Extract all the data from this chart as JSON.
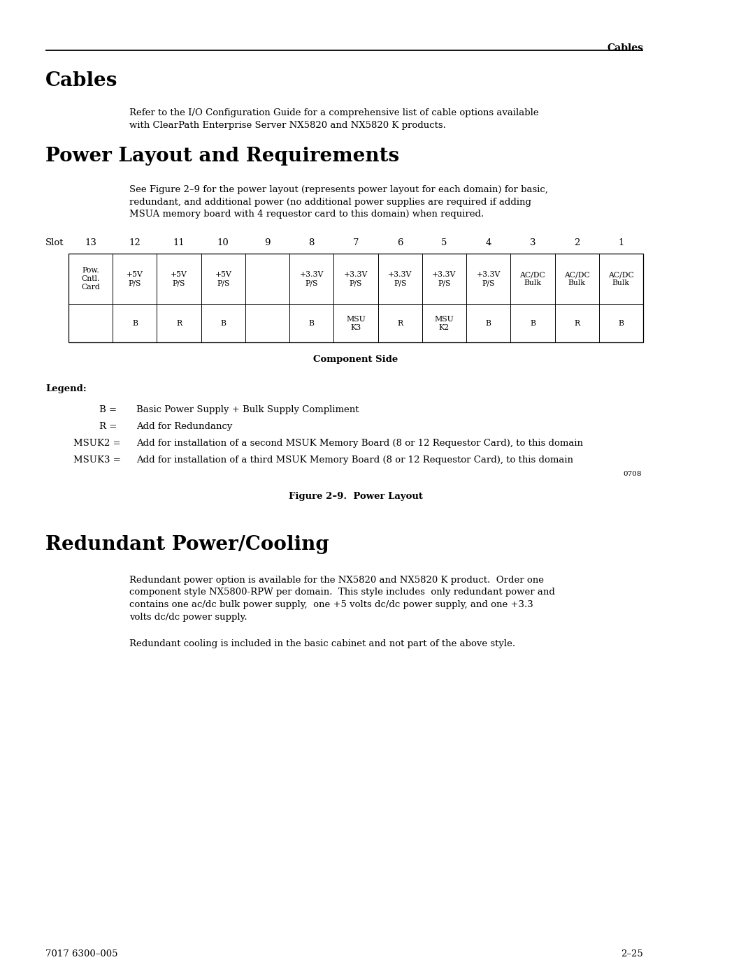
{
  "bg_color": "#ffffff",
  "header_text": "Cables",
  "section1_title": "Cables",
  "section1_body1": "Refer to the I/O Configuration Guide for a comprehensive list of cable options available",
  "section1_body2": "with ClearPath Enterprise Server NX5820 and NX5820 K products.",
  "section2_title": "Power Layout and Requirements",
  "section2_body1": "See Figure 2–9 for the power layout (represents power layout for each domain) for basic,",
  "section2_body2": "redundant, and additional power (no additional power supplies are required if adding",
  "section2_body3": "MSUA memory board with 4 requestor card to this domain) when required.",
  "slot_labels": [
    "Slot",
    "13",
    "12",
    "11",
    "10",
    "9",
    "8",
    "7",
    "6",
    "5",
    "4",
    "3",
    "2",
    "1"
  ],
  "table_row1_texts": [
    "Pow.\nCntl.\nCard",
    "+5V\nP/S",
    "+5V\nP/S",
    "+5V\nP/S",
    "",
    "+3.3V\nP/S",
    "+3.3V\nP/S",
    "+3.3V\nP/S",
    "+3.3V\nP/S",
    "+3.3V\nP/S",
    "AC/DC\nBulk",
    "AC/DC\nBulk",
    "AC/DC\nBulk"
  ],
  "table_row2_texts": [
    "",
    "B",
    "R",
    "B",
    "",
    "B",
    "MSU\nK3",
    "R",
    "MSU\nK2",
    "B",
    "B",
    "R",
    "B"
  ],
  "component_side_label": "Component Side",
  "legend_title": "Legend:",
  "legend_b_key": "B =",
  "legend_b_val": "Basic Power Supply + Bulk Supply Compliment",
  "legend_r_key": "R =",
  "legend_r_val": "Add for Redundancy",
  "legend_msuk2_key": "MSUK2 =",
  "legend_msuk2_val": "Add for installation of a second MSUK Memory Board (8 or 12 Requestor Card), to this domain",
  "legend_msuk3_key": "MSUK3 =",
  "legend_msuk3_val": "Add for installation of a third MSUK Memory Board (8 or 12 Requestor Card), to this domain",
  "figure_number": "0708",
  "figure_caption": "Figure 2–9.  Power Layout",
  "section3_title": "Redundant Power/Cooling",
  "section3_para1_l1": "Redundant power option is available for the NX5820 and NX5820 K product.  Order one",
  "section3_para1_l2": "component style NX5800-RPW per domain.  This style includes  only redundant power and",
  "section3_para1_l3": "contains one ac/dc bulk power supply,  one +5 volts dc/dc power supply, and one +3.3",
  "section3_para1_l4": "volts dc/dc power supply.",
  "section3_para2": "Redundant cooling is included in the basic cabinet and not part of the above style.",
  "footer_left": "7017 6300–005",
  "footer_right": "2–25"
}
